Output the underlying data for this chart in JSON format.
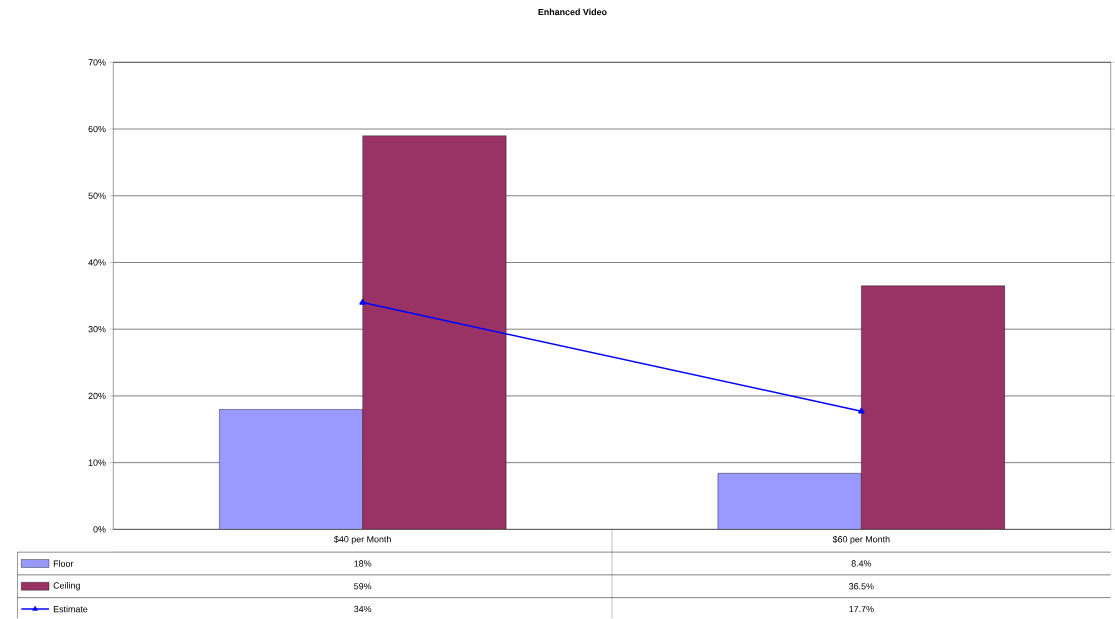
{
  "chart_data": {
    "type": "bar",
    "title": "Enhanced Video",
    "categories": [
      "$40 per Month",
      "$60 per Month"
    ],
    "series": [
      {
        "name": "Floor",
        "color": "#9999ff",
        "values": [
          18,
          8.4
        ],
        "value_labels": [
          "18%",
          "8.4%"
        ]
      },
      {
        "name": "Ceiling",
        "color": "#993366",
        "values": [
          59,
          36.5
        ],
        "value_labels": [
          "59%",
          "36.5%"
        ]
      },
      {
        "name": "Estimate",
        "type": "line",
        "color": "#0000ff",
        "marker": "triangle",
        "line_style": "solid",
        "values": [
          34,
          17.7
        ],
        "value_labels": [
          "34%",
          "17.7%"
        ]
      }
    ],
    "ylim": [
      0,
      70
    ],
    "yticks": [
      {
        "value": 0,
        "label": "0%"
      },
      {
        "value": 10,
        "label": "10%"
      },
      {
        "value": 20,
        "label": "20%"
      },
      {
        "value": 30,
        "label": "30%"
      },
      {
        "value": 40,
        "label": "40%"
      },
      {
        "value": 50,
        "label": "50%"
      },
      {
        "value": 60,
        "label": "60%"
      },
      {
        "value": 70,
        "label": "70%"
      }
    ],
    "grid": "y",
    "legend": "bottom left"
  }
}
